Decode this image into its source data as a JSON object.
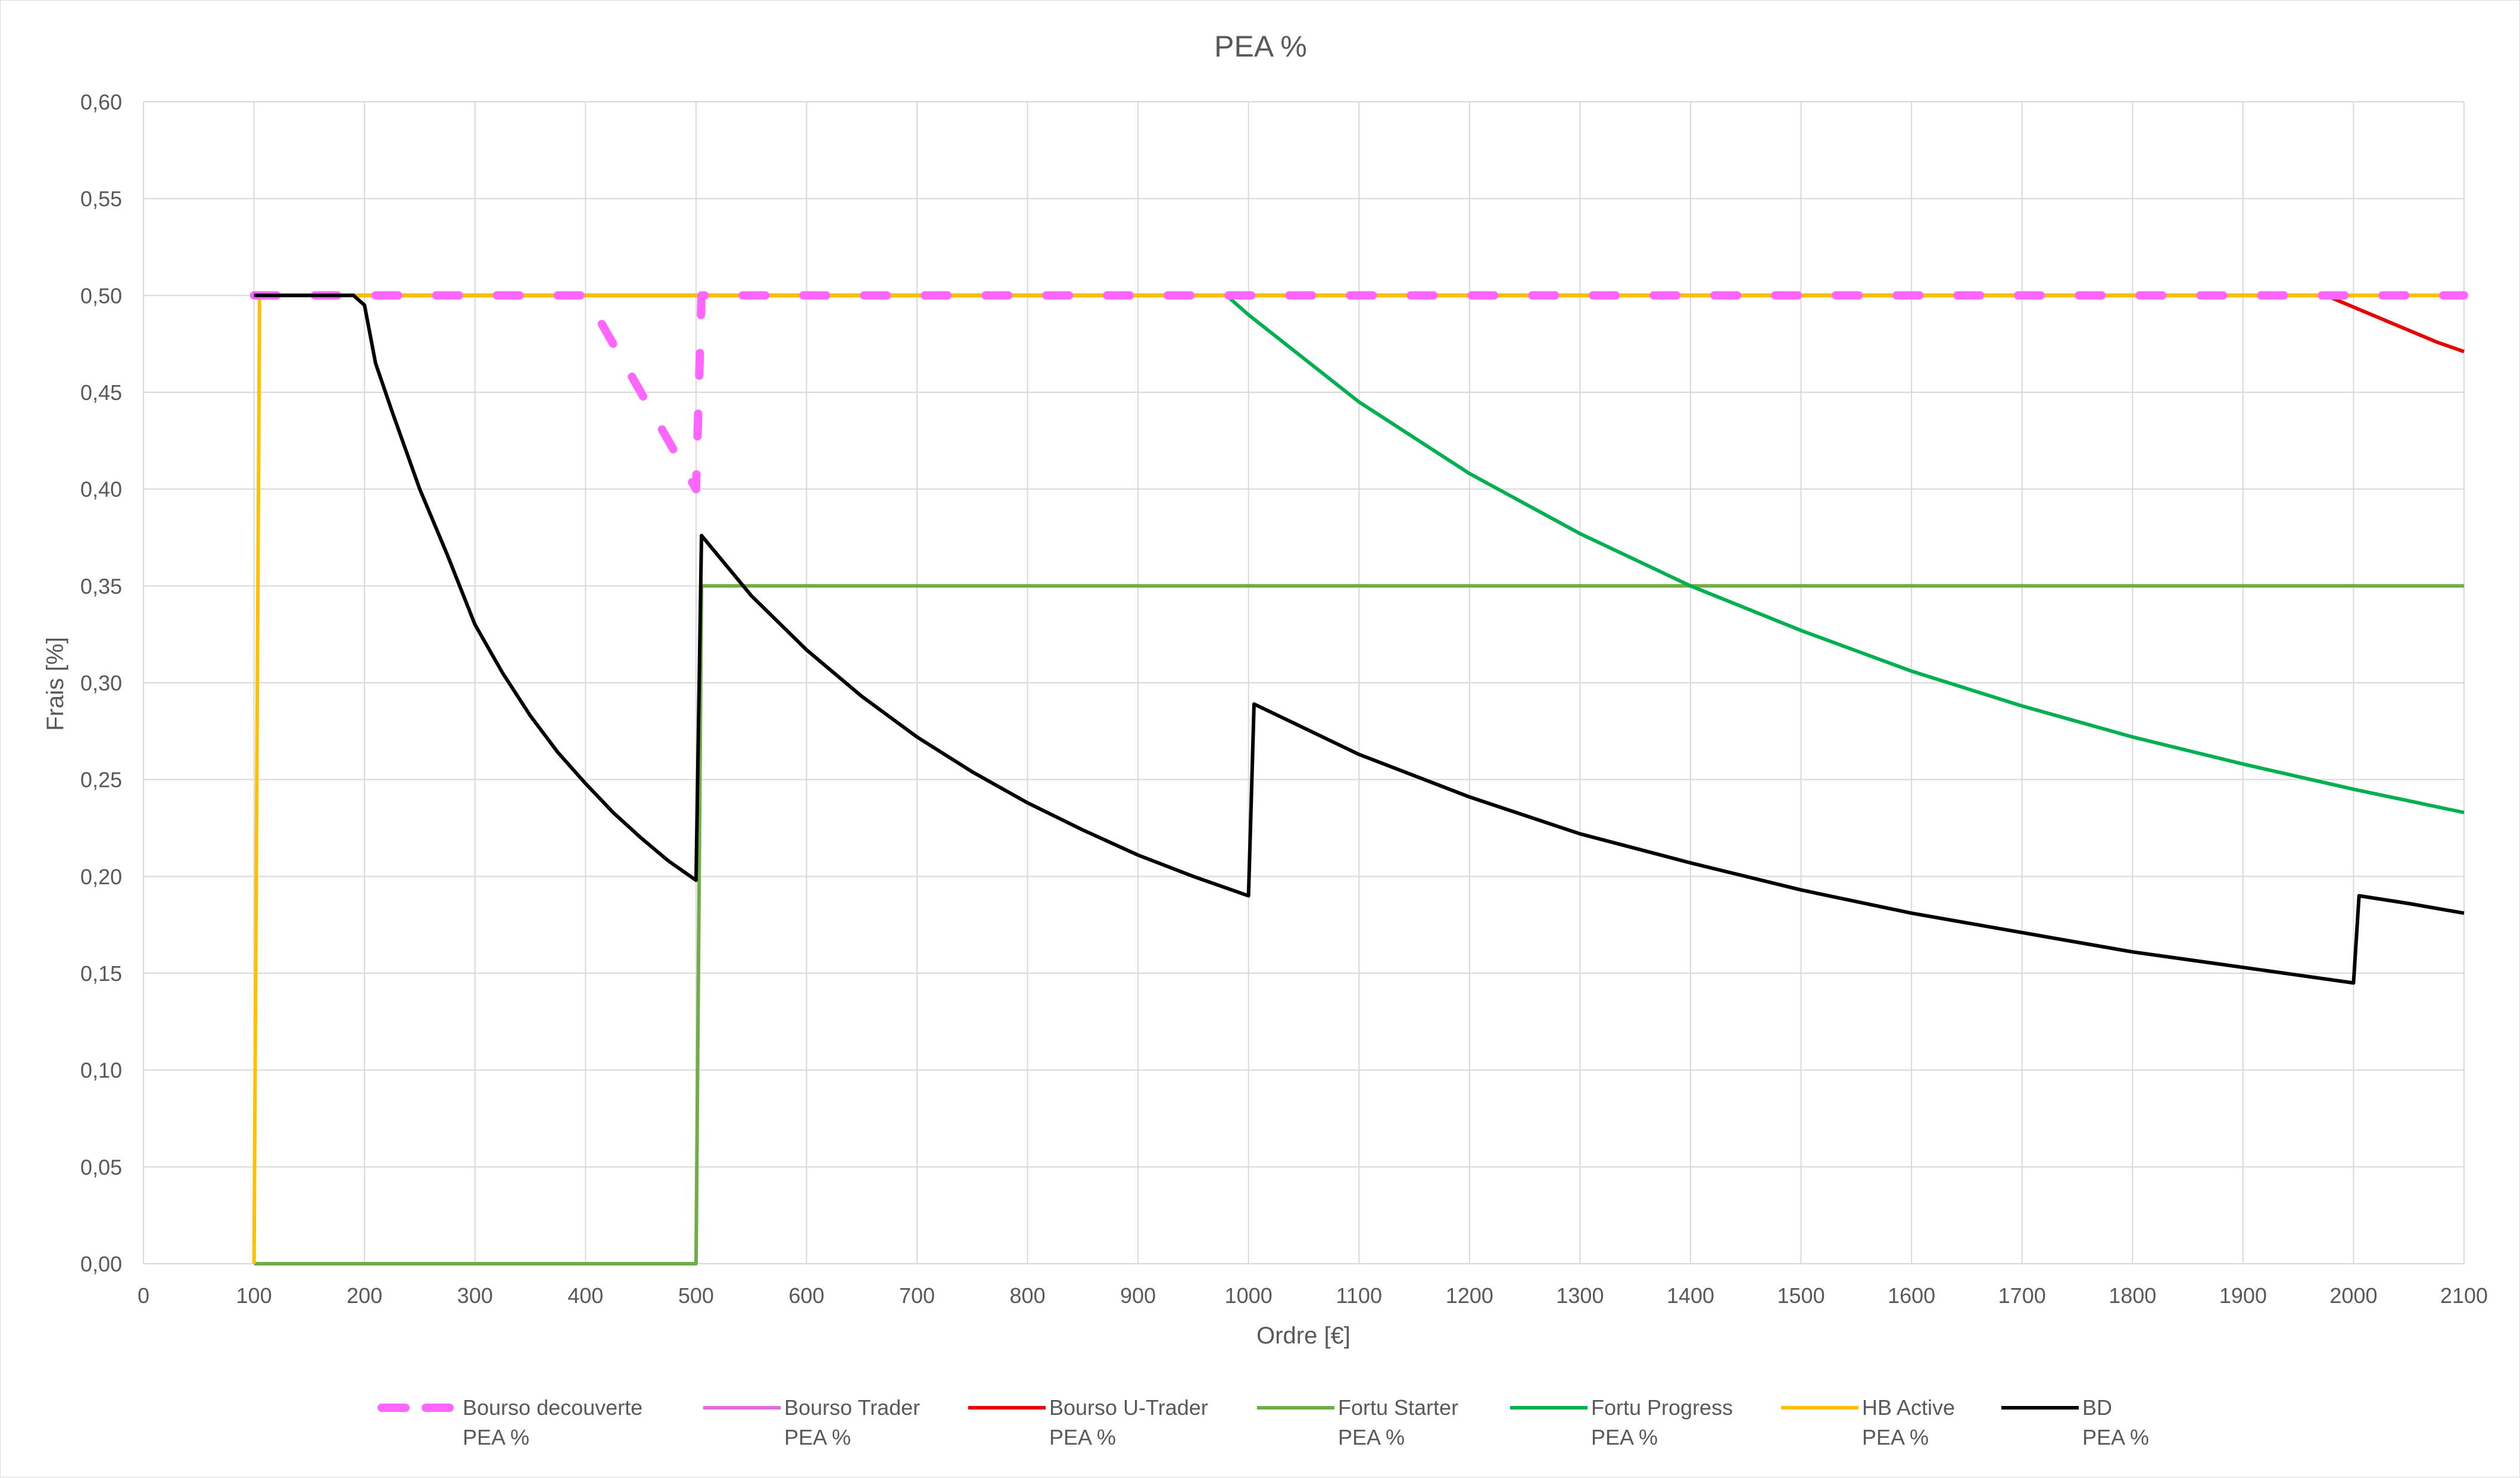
{
  "chart_data": {
    "type": "line",
    "title": "PEA %",
    "xlabel": "Ordre [€]",
    "ylabel": "Frais [%]",
    "xlim": [
      0,
      2100
    ],
    "ylim": [
      0,
      0.6
    ],
    "x_ticks": [
      0,
      100,
      200,
      300,
      400,
      500,
      600,
      700,
      800,
      900,
      1000,
      1100,
      1200,
      1300,
      1400,
      1500,
      1600,
      1700,
      1800,
      1900,
      2000,
      2100
    ],
    "y_ticks": [
      0,
      0.05,
      0.1,
      0.15,
      0.2,
      0.25,
      0.3,
      0.35,
      0.4,
      0.45,
      0.5,
      0.55,
      0.6
    ],
    "x_tick_labels": [
      "0",
      "100",
      "200",
      "300",
      "400",
      "500",
      "600",
      "700",
      "800",
      "900",
      "1000",
      "1100",
      "1200",
      "1300",
      "1400",
      "1500",
      "1600",
      "1700",
      "1800",
      "1900",
      "2000",
      "2100"
    ],
    "y_tick_labels": [
      "0,00",
      "0,05",
      "0,10",
      "0,15",
      "0,20",
      "0,25",
      "0,30",
      "0,35",
      "0,40",
      "0,45",
      "0,50",
      "0,55",
      "0,60"
    ],
    "grid": true,
    "legend_position": "bottom",
    "series": [
      {
        "name": "Bourso decouverte",
        "legend_line2": "PEA %",
        "color": "#FF66FF",
        "dash": true,
        "x": [
          100,
          400,
          500,
          505,
          2100
        ],
        "y": [
          0.5,
          0.5,
          0.4,
          0.5,
          0.5
        ]
      },
      {
        "name": "Bourso Trader",
        "legend_line2": "PEA %",
        "color": "#E06CE0",
        "dash": false,
        "x": [
          100,
          2100
        ],
        "y": [
          0.5,
          0.5
        ]
      },
      {
        "name": "Bourso U-Trader",
        "legend_line2": "PEA %",
        "color": "#E60000",
        "dash": false,
        "x": [
          100,
          1975,
          2000,
          2025,
          2050,
          2075,
          2100
        ],
        "y": [
          0.5,
          0.5,
          0.494,
          0.488,
          0.482,
          0.476,
          0.471
        ]
      },
      {
        "name": "Fortu Starter",
        "legend_line2": "PEA %",
        "color": "#70AD47",
        "dash": false,
        "x": [
          100,
          500,
          505,
          2100
        ],
        "y": [
          0,
          0,
          0.35,
          0.35
        ]
      },
      {
        "name": "Fortu Progress",
        "legend_line2": "PEA %",
        "color": "#00B050",
        "dash": false,
        "x": [
          100,
          980,
          1000,
          1100,
          1200,
          1300,
          1400,
          1500,
          1600,
          1700,
          1800,
          1900,
          2000,
          2100
        ],
        "y": [
          0.5,
          0.5,
          0.49,
          0.445,
          0.408,
          0.377,
          0.35,
          0.327,
          0.306,
          0.288,
          0.272,
          0.258,
          0.245,
          0.233
        ]
      },
      {
        "name": "HB Active",
        "legend_line2": "PEA %",
        "color": "#FFC000",
        "dash": false,
        "x": [
          100,
          105,
          2100
        ],
        "y": [
          0,
          0.5,
          0.5
        ]
      },
      {
        "name": "BD",
        "legend_line2": "PEA %",
        "color": "#000000",
        "dash": false,
        "x": [
          100,
          190,
          200,
          210,
          225,
          250,
          275,
          300,
          325,
          350,
          375,
          400,
          425,
          450,
          475,
          500,
          505,
          550,
          600,
          650,
          700,
          750,
          800,
          850,
          900,
          950,
          1000,
          1005,
          1100,
          1200,
          1300,
          1400,
          1500,
          1600,
          1700,
          1800,
          1900,
          2000,
          2005,
          2050,
          2100
        ],
        "y": [
          0.5,
          0.5,
          0.495,
          0.465,
          0.44,
          0.4,
          0.366,
          0.33,
          0.305,
          0.283,
          0.264,
          0.248,
          0.233,
          0.22,
          0.208,
          0.198,
          0.376,
          0.345,
          0.317,
          0.293,
          0.272,
          0.254,
          0.238,
          0.224,
          0.211,
          0.2,
          0.19,
          0.289,
          0.263,
          0.241,
          0.222,
          0.207,
          0.193,
          0.181,
          0.171,
          0.161,
          0.153,
          0.145,
          0.19,
          0.186,
          0.181
        ]
      }
    ]
  }
}
